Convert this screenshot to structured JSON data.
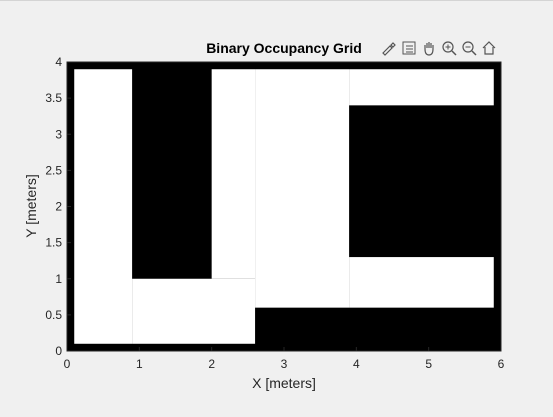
{
  "chart_data": {
    "type": "heatmap",
    "title": "Binary Occupancy Grid",
    "xlabel": "X [meters]",
    "ylabel": "Y [meters]",
    "xlim": [
      0,
      6
    ],
    "ylim": [
      0,
      4
    ],
    "xticks": [
      "0",
      "1",
      "2",
      "3",
      "4",
      "5",
      "6"
    ],
    "yticks": [
      "0",
      "0.5",
      "1",
      "1.5",
      "2",
      "2.5",
      "3",
      "3.5",
      "4"
    ],
    "occupied_value": 1,
    "free_value": 0,
    "free_regions": [
      {
        "x0": 0.1,
        "x1": 0.9,
        "y0": 0.1,
        "y1": 3.9
      },
      {
        "x0": 0.9,
        "x1": 2.6,
        "y0": 0.1,
        "y1": 1.0
      },
      {
        "x0": 2.0,
        "x1": 2.6,
        "y0": 1.0,
        "y1": 3.9
      },
      {
        "x0": 2.6,
        "x1": 3.9,
        "y0": 0.6,
        "y1": 3.9
      },
      {
        "x0": 3.9,
        "x1": 5.9,
        "y0": 3.4,
        "y1": 3.9
      },
      {
        "x0": 3.9,
        "x1": 5.9,
        "y0": 0.6,
        "y1": 1.3
      }
    ],
    "colors": {
      "occupied": "#000000",
      "free": "#ffffff"
    }
  },
  "toolbar": {
    "icons": [
      "brush-icon",
      "legend-icon",
      "pan-icon",
      "zoom-in-icon",
      "zoom-out-icon",
      "home-icon"
    ]
  }
}
